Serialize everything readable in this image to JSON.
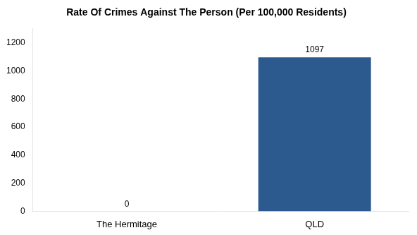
{
  "chart_data": {
    "type": "bar",
    "title": "Rate Of Crimes Against The Person (Per 100,000 Residents)",
    "categories": [
      "The Hermitage",
      "QLD"
    ],
    "values": [
      0,
      1097
    ],
    "color": "#2d5a8e",
    "ylim": [
      0,
      1300
    ],
    "yticks": [
      0,
      200,
      400,
      600,
      800,
      1000,
      1200
    ],
    "grid": false,
    "data_labels": true
  }
}
